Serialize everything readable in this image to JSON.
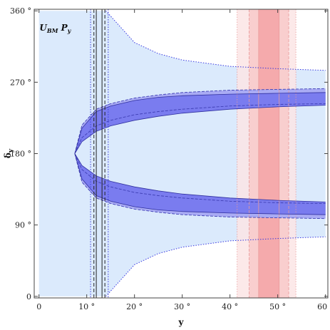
{
  "chart_data": {
    "type": "area",
    "xlabel": "y",
    "ylabel": "δ",
    "ylabel_sub": "y",
    "xlim": [
      -1,
      60.5
    ],
    "ylim": [
      -2,
      362
    ],
    "x_ticks": [
      0,
      10,
      20,
      30,
      40,
      50,
      60
    ],
    "x_tick_labels": [
      "0",
      "10 °",
      "20 °",
      "30 °",
      "40 °",
      "50 °",
      "60 °"
    ],
    "y_ticks": [
      0,
      90,
      180,
      270,
      360
    ],
    "y_tick_labels": [
      "0",
      "90 °",
      "180 °",
      "270 °",
      "360 °"
    ],
    "annotation": {
      "main": "U",
      "sub": "BM",
      "rest": " P",
      "rest_sub": "y"
    },
    "colors": {
      "light_region": "#dbeafc",
      "outer_band": "#a9abf4",
      "mid_band": "#7a7cef",
      "inner_band": "#5a5dec",
      "red_outer": "#fbe5e5",
      "red_mid": "#f8c9c9",
      "red_inner": "#f4a3a6",
      "dotted_blue": "#3a3ae0"
    },
    "light_region": {
      "x": [
        0,
        10,
        12,
        14,
        20,
        25,
        30,
        40,
        50,
        60
      ],
      "upper": [
        360,
        360,
        360,
        360,
        320,
        306,
        298,
        290,
        287,
        285
      ],
      "lower": [
        0,
        0,
        0,
        0,
        40,
        54,
        62,
        70,
        73,
        75
      ]
    },
    "outer_band": {
      "x": [
        7.5,
        9,
        12,
        15,
        20,
        25,
        30,
        40,
        50,
        60
      ],
      "upper_out": [
        180,
        216,
        236,
        243,
        250,
        254,
        257,
        260,
        261,
        262
      ],
      "upper_in": [
        180,
        160,
        145,
        138,
        131,
        127,
        124,
        120,
        118,
        117
      ],
      "lower_in": [
        180,
        200,
        215,
        222,
        229,
        233,
        236,
        240,
        242,
        243
      ],
      "lower_out": [
        180,
        144,
        124,
        117,
        110,
        106,
        103,
        100,
        99,
        98
      ]
    },
    "mid_band": {
      "x": [
        7.5,
        9,
        12,
        15,
        20,
        25,
        30,
        40,
        50,
        60
      ],
      "upper_out": [
        180,
        212,
        233,
        240,
        247,
        251,
        253,
        255,
        256,
        257
      ],
      "upper_in": [
        180,
        165,
        152,
        145,
        138,
        133,
        129,
        124,
        121,
        119
      ],
      "lower_in": [
        180,
        195,
        208,
        215,
        222,
        227,
        231,
        236,
        239,
        241
      ],
      "lower_out": [
        180,
        148,
        127,
        120,
        113,
        109,
        107,
        105,
        104,
        103
      ]
    },
    "vertical_lines": [
      {
        "x": 11.5,
        "style": "dashed"
      },
      {
        "x": 12.0,
        "style": "solid"
      },
      {
        "x": 13.2,
        "style": "solid"
      },
      {
        "x": 13.8,
        "style": "dashed"
      },
      {
        "x": 10.8,
        "style": "dotted"
      },
      {
        "x": 14.5,
        "style": "dotted"
      }
    ],
    "red_bands": [
      {
        "x": [
          41.5,
          53.8
        ],
        "level": "outer"
      },
      {
        "x": [
          44,
          52.3
        ],
        "level": "mid"
      },
      {
        "x": [
          46,
          50.3
        ],
        "level": "inner"
      }
    ]
  }
}
